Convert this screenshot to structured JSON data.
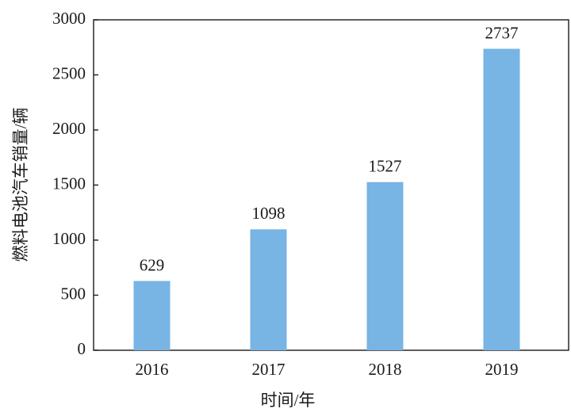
{
  "chart_data": {
    "type": "bar",
    "categories": [
      "2016",
      "2017",
      "2018",
      "2019"
    ],
    "values": [
      629,
      1098,
      1527,
      2737
    ],
    "color": "#78b4e4",
    "xlabel": "时间/年",
    "ylabel": "燃料电池汽车销量/辆",
    "ylim": [
      0,
      3000
    ],
    "yticks": [
      0,
      500,
      1000,
      1500,
      2000,
      2500,
      3000
    ]
  }
}
